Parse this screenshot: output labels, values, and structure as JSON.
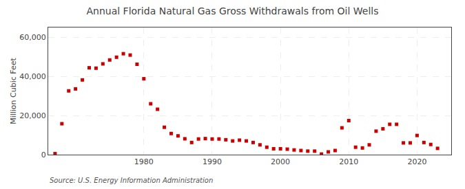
{
  "chart_data": {
    "type": "scatter",
    "title": "Annual Florida Natural Gas Gross Withdrawals from Oil Wells",
    "ylabel": "Million Cubic Feet",
    "annotations": [
      "Source: U.S. Energy Information Administration"
    ],
    "x": [
      1967,
      1968,
      1969,
      1970,
      1971,
      1972,
      1973,
      1974,
      1975,
      1976,
      1977,
      1978,
      1979,
      1980,
      1981,
      1982,
      1983,
      1984,
      1985,
      1986,
      1987,
      1988,
      1989,
      1990,
      1991,
      1992,
      1993,
      1994,
      1995,
      1996,
      1997,
      1998,
      1999,
      2000,
      2001,
      2002,
      2003,
      2004,
      2005,
      2006,
      2007,
      2008,
      2009,
      2010,
      2011,
      2012,
      2013,
      2014,
      2015,
      2016,
      2017,
      2018,
      2019,
      2020,
      2021,
      2022,
      2023
    ],
    "values": [
      500,
      15800,
      32600,
      33600,
      38200,
      44400,
      44200,
      46400,
      48400,
      49800,
      51600,
      50900,
      46200,
      38800,
      26000,
      23200,
      14000,
      10800,
      9600,
      8100,
      6200,
      8000,
      8200,
      8000,
      8000,
      7600,
      7000,
      7400,
      7000,
      6200,
      5000,
      3800,
      3000,
      3000,
      2800,
      2400,
      2100,
      1800,
      1800,
      300,
      1400,
      2100,
      13700,
      17400,
      3800,
      3400,
      5000,
      12000,
      13200,
      15500,
      15500,
      6000,
      6000,
      9800,
      6200,
      5200,
      3200
    ],
    "color": "#cc0000",
    "marker": "square",
    "xlim": [
      1966,
      2025
    ],
    "ylim": [
      0,
      65000
    ],
    "xticks": [
      1980,
      1990,
      2000,
      2010,
      2020
    ],
    "yticks": [
      0,
      {
        "value": 20000,
        "label": "20,000"
      },
      {
        "value": 40000,
        "label": "40,000"
      },
      {
        "value": 60000,
        "label": "60,000"
      }
    ],
    "grid": true
  }
}
